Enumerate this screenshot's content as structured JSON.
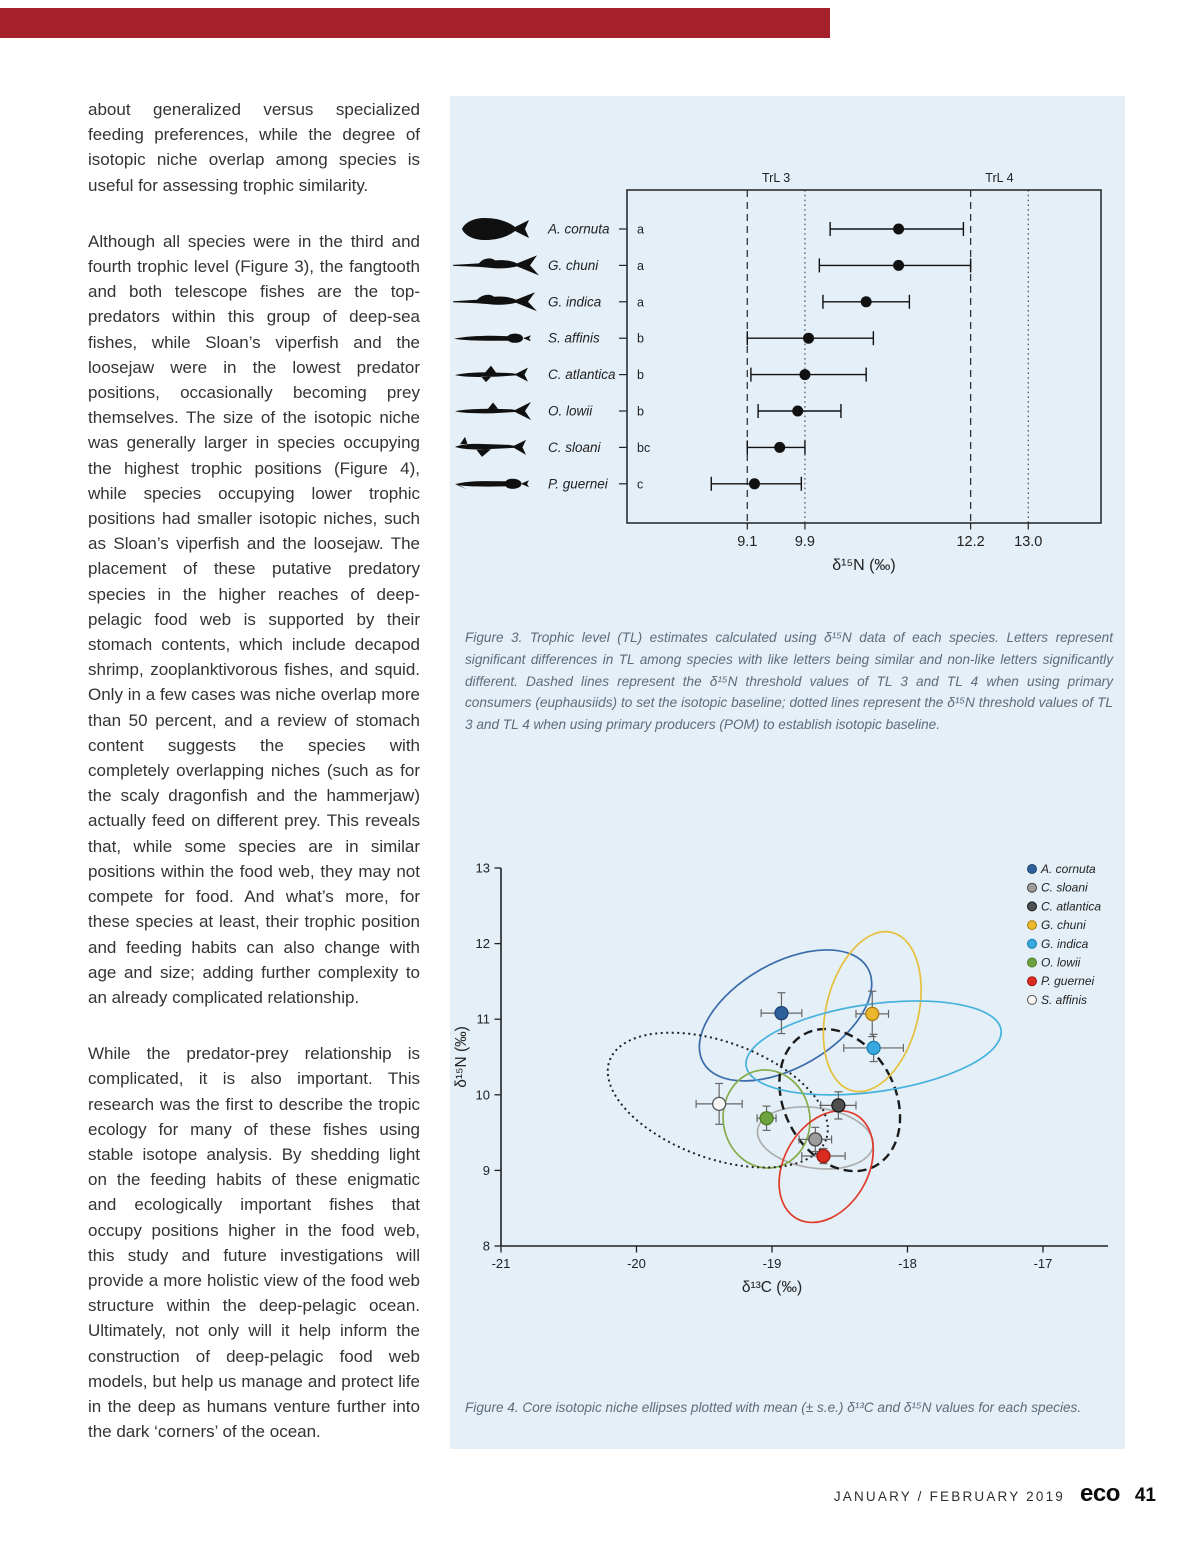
{
  "page": {
    "top_bar_color": "#A6202C",
    "footer": {
      "issue_date": "JANUARY / FEBRUARY 2019",
      "magazine_logo": "eco",
      "page_number": "41"
    }
  },
  "article": {
    "paragraphs": [
      "about generalized versus specialized feeding preferences, while the degree of isotopic niche overlap among species is useful for assessing trophic similarity.",
      "Although all species were in the third and fourth trophic level (Figure 3), the fangtooth and both telescope fishes are the top-predators within this group of deep-sea fishes, while Sloan’s viperfish and the loosejaw were in the lowest predator positions, occasionally becoming prey themselves. The size of the isotopic niche was generally larger in species occupying the highest trophic positions (Figure 4), while species occupying lower trophic positions had smaller isotopic niches, such as Sloan’s viperfish and the loosejaw. The placement of these putative predatory species in the higher reaches of deep-pelagic food web is supported by their stomach contents, which include decapod shrimp, zooplanktivorous fishes, and squid. Only in a few cases was niche overlap more than 50 percent, and a review of stomach content suggests the species with completely overlapping niches (such as for the scaly dragonfish and the hammerjaw) actually feed on different prey. This reveals that, while some species are in similar positions within the food web, they may not compete for food. And what’s more, for these species at least, their trophic position and feeding habits can also change with age and size; adding further complexity to an already complicated relationship.",
      "While the predator-prey relationship is complicated, it is also important. This research was the first to describe the tropic ecology for many of these fishes using stable isotope analysis. By shedding light on the feeding habits of these enigmatic and ecologically important fishes that occupy positions higher in the food web, this study and future investigations will provide a more holistic view of the food web structure within the deep-pelagic ocean. Ultimately, not only will it help inform the construction of deep-pelagic food web models, but help us manage and protect life in the deep as humans venture further into the dark ‘corners’ of the ocean."
    ]
  },
  "figure3_caption": "Figure 3. Trophic level (TL) estimates calculated using δ¹⁵N data of each species.  Letters represent significant differences in TL among species with like letters being similar and non-like letters significantly different.  Dashed lines represent the δ¹⁵N threshold values of TL 3 and TL 4 when using primary consumers (euphausiids) to set the isotopic baseline; dotted lines represent the δ¹⁵N threshold values of TL 3 and TL 4 when using primary producers (POM) to establish isotopic baseline.",
  "figure4_caption": "Figure 4. Core isotopic niche ellipses plotted with mean (± s.e.) δ¹³C and δ¹⁵N values for each species.",
  "chart_data": [
    {
      "type": "scatter",
      "subtype": "horizontal-errorbar-forest-plot",
      "title": "",
      "xlabel": "δ¹⁵N (‰)",
      "xlim": [
        7.43,
        14.01
      ],
      "xticks": [
        9.1,
        9.9,
        12.2,
        13.0
      ],
      "grid": false,
      "top_axis_labels": [
        {
          "label": "TrL 3",
          "x": 9.5
        },
        {
          "label": "TrL 4",
          "x": 12.6
        }
      ],
      "threshold_lines": [
        {
          "style": "dashed",
          "x": 9.1,
          "meaning": "TL 3 threshold, euphausiid baseline"
        },
        {
          "style": "dotted",
          "x": 9.9,
          "meaning": "TL 3 threshold, POM baseline"
        },
        {
          "style": "dashed",
          "x": 12.2,
          "meaning": "TL 4 threshold, euphausiid baseline"
        },
        {
          "style": "dotted",
          "x": 13.0,
          "meaning": "TL 4 threshold, POM baseline"
        }
      ],
      "species": [
        {
          "name": "A. cornuta",
          "letter": "a",
          "mean": 11.2,
          "lo": 10.25,
          "hi": 12.1
        },
        {
          "name": "G. chuni",
          "letter": "a",
          "mean": 11.2,
          "lo": 10.1,
          "hi": 12.2
        },
        {
          "name": "G. indica",
          "letter": "a",
          "mean": 10.75,
          "lo": 10.15,
          "hi": 11.35
        },
        {
          "name": "S. affinis",
          "letter": "b",
          "mean": 9.95,
          "lo": 9.1,
          "hi": 10.85
        },
        {
          "name": "C. atlantica",
          "letter": "b",
          "mean": 9.9,
          "lo": 9.15,
          "hi": 10.75
        },
        {
          "name": "O. lowii",
          "letter": "b",
          "mean": 9.8,
          "lo": 9.25,
          "hi": 10.4
        },
        {
          "name": "C. sloani",
          "letter": "bc",
          "mean": 9.55,
          "lo": 9.1,
          "hi": 9.9
        },
        {
          "name": "P. guernei",
          "letter": "c",
          "mean": 9.2,
          "lo": 8.6,
          "hi": 9.85
        }
      ]
    },
    {
      "type": "scatter",
      "subtype": "isotopic-niche-ellipses",
      "title": "",
      "xlabel": "δ¹³C (‰)",
      "ylabel": "δ¹⁵N (‰)",
      "xlim": [
        -21,
        -16.52
      ],
      "ylim": [
        8,
        13
      ],
      "xticks": [
        -21,
        -20,
        -19,
        -18,
        -17
      ],
      "yticks": [
        8,
        9,
        10,
        11,
        12,
        13
      ],
      "grid": false,
      "legend_position": "upper-right-outside-plot",
      "legend_order": [
        "A. cornuta",
        "C. sloani",
        "C. atlantica",
        "G. chuni",
        "G. indica",
        "O. lowii",
        "P. guernei",
        "S. affinis"
      ],
      "series": [
        {
          "name": "A. cornuta",
          "x": -18.93,
          "y": 11.08,
          "xerr": 0.15,
          "yerr": 0.27,
          "marker_fill": "#2D5F9A",
          "marker_stroke": "#1d4470",
          "line_color": "#3A6BAA",
          "line_style": "solid",
          "ellipse": {
            "cx": -18.9,
            "cy": 11.05,
            "rx": 0.7,
            "ry": 0.69,
            "rot": -30
          }
        },
        {
          "name": "C. sloani",
          "x": -18.68,
          "y": 9.41,
          "xerr": 0.12,
          "yerr": 0.16,
          "marker_fill": "#9C9C9C",
          "marker_stroke": "#444444",
          "line_color": "#ADADAD",
          "line_style": "solid",
          "ellipse": {
            "cx": -18.68,
            "cy": 9.43,
            "rx": 0.43,
            "ry": 0.4,
            "rot": 8
          }
        },
        {
          "name": "C. atlantica",
          "x": -18.51,
          "y": 9.86,
          "xerr": 0.13,
          "yerr": 0.18,
          "marker_fill": "#4F4F4F",
          "marker_stroke": "#1a1a1a",
          "line_color": "#1a1a1a",
          "line_style": "dashed",
          "ellipse": {
            "cx": -18.5,
            "cy": 9.93,
            "rx": 0.41,
            "ry": 0.99,
            "rot": -28
          }
        },
        {
          "name": "G. chuni",
          "x": -18.26,
          "y": 11.07,
          "xerr": 0.12,
          "yerr": 0.3,
          "marker_fill": "#EDB62F",
          "marker_stroke": "#a97d12",
          "line_color": "#E6C03C",
          "line_style": "solid",
          "ellipse": {
            "cx": -18.26,
            "cy": 11.1,
            "rx": 0.34,
            "ry": 1.08,
            "rot": 14
          }
        },
        {
          "name": "G. indica",
          "x": -18.25,
          "y": 10.62,
          "xerr": 0.22,
          "yerr": 0.18,
          "marker_fill": "#38A9E0",
          "marker_stroke": "#1d7fb0",
          "line_color": "#45B2DE",
          "line_style": "solid",
          "ellipse": {
            "cx": -18.25,
            "cy": 10.62,
            "rx": 0.95,
            "ry": 0.58,
            "rot": -8
          }
        },
        {
          "name": "O. lowii",
          "x": -19.04,
          "y": 9.69,
          "xerr": 0.07,
          "yerr": 0.16,
          "marker_fill": "#6EA43F",
          "marker_stroke": "#4d7a24",
          "line_color": "#86AC4A",
          "line_style": "solid",
          "ellipse": {
            "cx": -19.04,
            "cy": 9.68,
            "rx": 0.32,
            "ry": 0.65,
            "rot": -8
          }
        },
        {
          "name": "P. guernei",
          "x": -18.62,
          "y": 9.19,
          "xerr": 0.16,
          "yerr": 0.1,
          "marker_fill": "#D92B1E",
          "marker_stroke": "#9e1910",
          "line_color": "#E03A2B",
          "line_style": "solid",
          "ellipse": {
            "cx": -18.6,
            "cy": 9.05,
            "rx": 0.31,
            "ry": 0.79,
            "rot": 30
          }
        },
        {
          "name": "S. affinis",
          "x": -19.39,
          "y": 9.88,
          "xerr": 0.17,
          "yerr": 0.27,
          "marker_fill": "#F5F5F5",
          "marker_stroke": "#555555",
          "line_color": "#222222",
          "line_style": "dotted",
          "ellipse": {
            "cx": -19.4,
            "cy": 9.93,
            "rx": 0.85,
            "ry": 0.77,
            "rot": 20
          }
        }
      ]
    }
  ]
}
